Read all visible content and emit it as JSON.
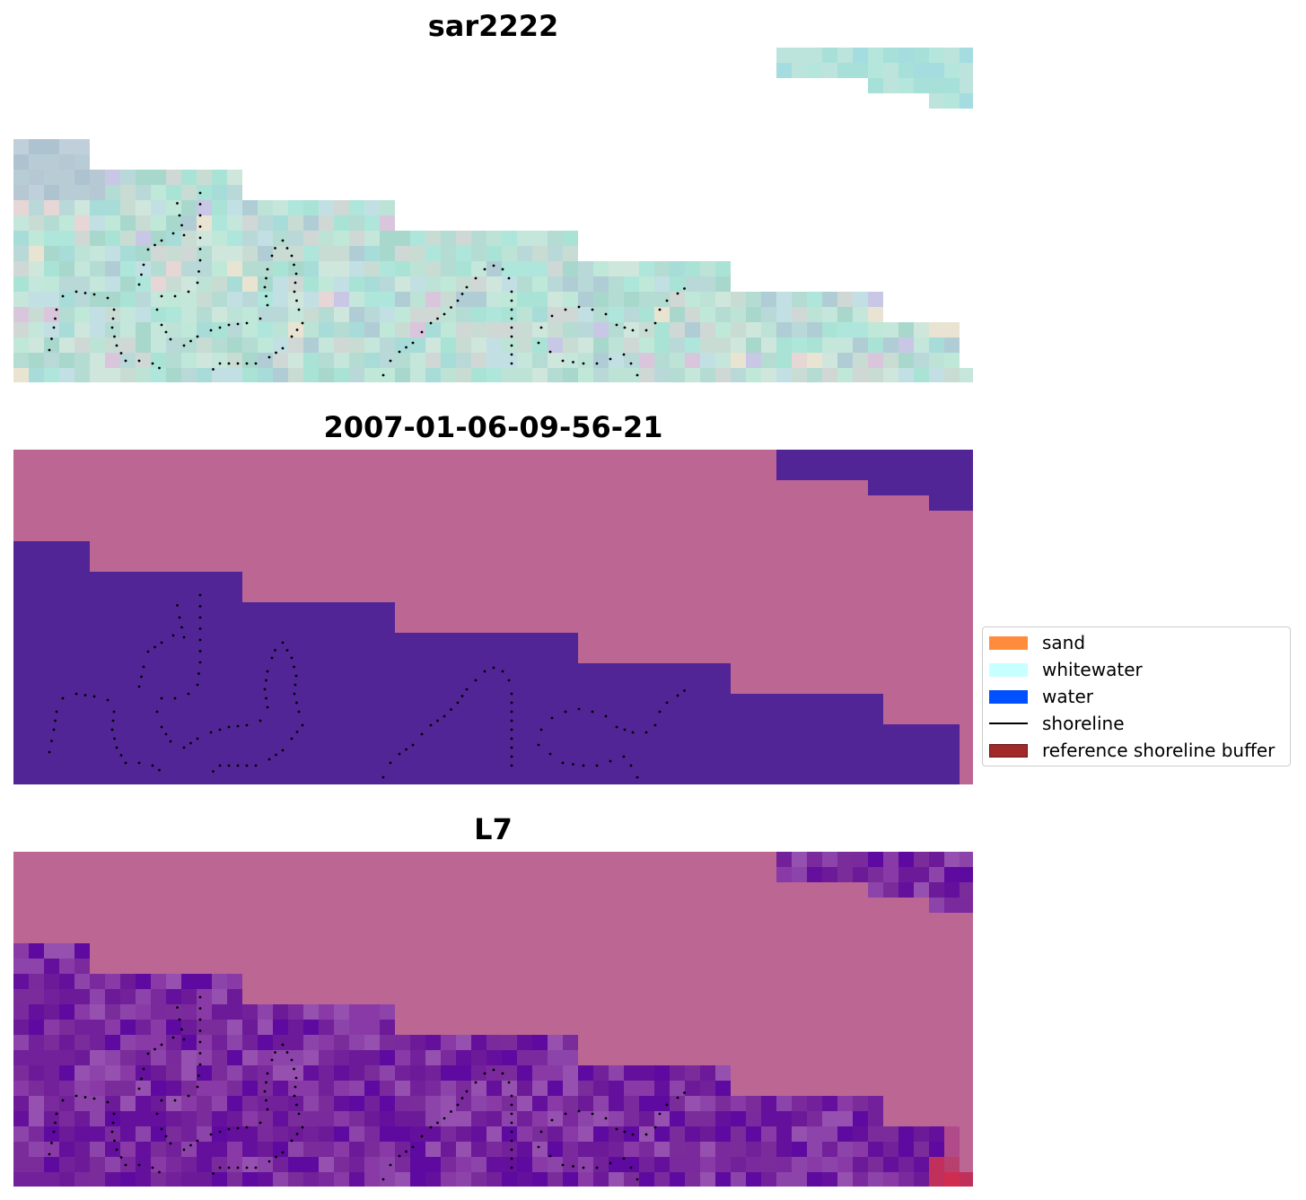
{
  "panels": [
    {
      "title": "sar2222",
      "mode": "rgb"
    },
    {
      "title": "2007-01-06-09-56-21",
      "mode": "classified"
    },
    {
      "title": "L7",
      "mode": "index"
    }
  ],
  "legend": {
    "items": [
      {
        "label": "sand",
        "kind": "patch",
        "color": "#ff8c3c"
      },
      {
        "label": "whitewater",
        "kind": "patch",
        "color": "#c8ffff"
      },
      {
        "label": "water",
        "kind": "patch",
        "color": "#0050ff"
      },
      {
        "label": "shoreline",
        "kind": "line",
        "color": "#000000"
      },
      {
        "label": "reference shoreline buffer",
        "kind": "patch",
        "color": "#a02a2a"
      }
    ]
  },
  "colors": {
    "land_mask": "#bc6694",
    "water_class": "#522597",
    "shoreline_points": "#000000",
    "rgb_base": "#b4dcd2",
    "index_base": "#7a2d9a"
  }
}
